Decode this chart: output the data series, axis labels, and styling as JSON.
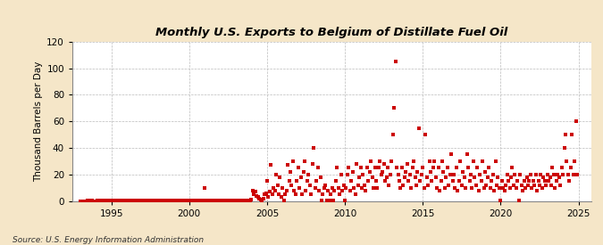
{
  "title": "Monthly U.S. Exports to Belgium of Distillate Fuel Oil",
  "ylabel": "Thousand Barrels per Day",
  "source": "Source: U.S. Energy Information Administration",
  "background_color": "#f5e6c8",
  "plot_background_color": "#ffffff",
  "marker_color": "#cc0000",
  "ylim": [
    0,
    120
  ],
  "yticks": [
    0,
    20,
    40,
    60,
    80,
    100,
    120
  ],
  "xlim_start": 1992.5,
  "xlim_end": 2025.8,
  "xticks": [
    1995,
    2000,
    2005,
    2010,
    2015,
    2020,
    2025
  ],
  "data": [
    [
      1993.0,
      0
    ],
    [
      1993.08,
      0
    ],
    [
      1993.17,
      0
    ],
    [
      1993.25,
      0
    ],
    [
      1993.33,
      0
    ],
    [
      1993.42,
      0
    ],
    [
      1993.5,
      0.5
    ],
    [
      1993.58,
      0.5
    ],
    [
      1993.67,
      0.5
    ],
    [
      1993.75,
      0.5
    ],
    [
      1993.83,
      0
    ],
    [
      1993.92,
      0
    ],
    [
      1994.0,
      0
    ],
    [
      1994.08,
      0.5
    ],
    [
      1994.17,
      0
    ],
    [
      1994.25,
      0.5
    ],
    [
      1994.33,
      0.5
    ],
    [
      1994.42,
      0.5
    ],
    [
      1994.5,
      0.5
    ],
    [
      1994.58,
      0.5
    ],
    [
      1994.67,
      0.5
    ],
    [
      1994.75,
      0.5
    ],
    [
      1994.83,
      0.5
    ],
    [
      1994.92,
      0.5
    ],
    [
      1995.0,
      0.5
    ],
    [
      1995.08,
      0.5
    ],
    [
      1995.17,
      0.5
    ],
    [
      1995.25,
      0.5
    ],
    [
      1995.33,
      0.5
    ],
    [
      1995.42,
      0.5
    ],
    [
      1995.5,
      0.5
    ],
    [
      1995.58,
      0.5
    ],
    [
      1995.67,
      0.5
    ],
    [
      1995.75,
      0.5
    ],
    [
      1995.83,
      0.5
    ],
    [
      1995.92,
      0.5
    ],
    [
      1996.0,
      0.5
    ],
    [
      1996.08,
      0.5
    ],
    [
      1996.17,
      0.5
    ],
    [
      1996.25,
      0.5
    ],
    [
      1996.33,
      0.5
    ],
    [
      1996.42,
      0.5
    ],
    [
      1996.5,
      0.5
    ],
    [
      1996.58,
      0.5
    ],
    [
      1996.67,
      0.5
    ],
    [
      1996.75,
      0.5
    ],
    [
      1996.83,
      0.5
    ],
    [
      1996.92,
      0.5
    ],
    [
      1997.0,
      0.5
    ],
    [
      1997.08,
      0.5
    ],
    [
      1997.17,
      0.5
    ],
    [
      1997.25,
      0.5
    ],
    [
      1997.33,
      0.5
    ],
    [
      1997.42,
      0.5
    ],
    [
      1997.5,
      0.5
    ],
    [
      1997.58,
      0.5
    ],
    [
      1997.67,
      0.5
    ],
    [
      1997.75,
      0.5
    ],
    [
      1997.83,
      0.5
    ],
    [
      1997.92,
      0.5
    ],
    [
      1998.0,
      0.5
    ],
    [
      1998.08,
      0.5
    ],
    [
      1998.17,
      0.5
    ],
    [
      1998.25,
      0.5
    ],
    [
      1998.33,
      0.5
    ],
    [
      1998.42,
      0.5
    ],
    [
      1998.5,
      0.5
    ],
    [
      1998.58,
      0.5
    ],
    [
      1998.67,
      0.5
    ],
    [
      1998.75,
      0.5
    ],
    [
      1998.83,
      0.5
    ],
    [
      1998.92,
      0.5
    ],
    [
      1999.0,
      0.5
    ],
    [
      1999.08,
      0.5
    ],
    [
      1999.17,
      0.5
    ],
    [
      1999.25,
      0.5
    ],
    [
      1999.33,
      0.5
    ],
    [
      1999.42,
      0.5
    ],
    [
      1999.5,
      0.5
    ],
    [
      1999.58,
      0.5
    ],
    [
      1999.67,
      0.5
    ],
    [
      1999.75,
      0.5
    ],
    [
      1999.83,
      0.5
    ],
    [
      1999.92,
      0.5
    ],
    [
      2000.0,
      0.5
    ],
    [
      2000.08,
      0.5
    ],
    [
      2000.17,
      0.5
    ],
    [
      2000.25,
      0.5
    ],
    [
      2000.33,
      0.5
    ],
    [
      2000.42,
      0.5
    ],
    [
      2000.5,
      0.5
    ],
    [
      2000.58,
      0.5
    ],
    [
      2000.67,
      0.5
    ],
    [
      2000.75,
      0.5
    ],
    [
      2000.83,
      0.5
    ],
    [
      2000.92,
      0.5
    ],
    [
      2001.0,
      10
    ],
    [
      2001.08,
      0.5
    ],
    [
      2001.17,
      0.5
    ],
    [
      2001.25,
      0.5
    ],
    [
      2001.33,
      0.5
    ],
    [
      2001.42,
      0.5
    ],
    [
      2001.5,
      0.5
    ],
    [
      2001.58,
      0.5
    ],
    [
      2001.67,
      0.5
    ],
    [
      2001.75,
      0.5
    ],
    [
      2001.83,
      0.5
    ],
    [
      2001.92,
      0.5
    ],
    [
      2002.0,
      0.5
    ],
    [
      2002.08,
      0.5
    ],
    [
      2002.17,
      0.5
    ],
    [
      2002.25,
      0.5
    ],
    [
      2002.33,
      0.5
    ],
    [
      2002.42,
      0.5
    ],
    [
      2002.5,
      0.5
    ],
    [
      2002.58,
      0.5
    ],
    [
      2002.67,
      0.5
    ],
    [
      2002.75,
      0.5
    ],
    [
      2002.83,
      0.5
    ],
    [
      2002.92,
      0.5
    ],
    [
      2003.0,
      0.5
    ],
    [
      2003.08,
      0.5
    ],
    [
      2003.17,
      0.5
    ],
    [
      2003.25,
      0.5
    ],
    [
      2003.33,
      0.5
    ],
    [
      2003.42,
      0.5
    ],
    [
      2003.5,
      0.5
    ],
    [
      2003.58,
      0.5
    ],
    [
      2003.67,
      0.5
    ],
    [
      2003.75,
      0.5
    ],
    [
      2003.83,
      0.5
    ],
    [
      2003.92,
      0.5
    ],
    [
      2004.0,
      1
    ],
    [
      2004.08,
      8
    ],
    [
      2004.17,
      5
    ],
    [
      2004.25,
      7
    ],
    [
      2004.33,
      4
    ],
    [
      2004.42,
      3
    ],
    [
      2004.5,
      2
    ],
    [
      2004.58,
      1
    ],
    [
      2004.67,
      0.5
    ],
    [
      2004.75,
      2
    ],
    [
      2004.83,
      5
    ],
    [
      2004.92,
      6
    ],
    [
      2005.0,
      15
    ],
    [
      2005.08,
      3
    ],
    [
      2005.17,
      7
    ],
    [
      2005.25,
      27
    ],
    [
      2005.33,
      5
    ],
    [
      2005.42,
      10
    ],
    [
      2005.5,
      8
    ],
    [
      2005.58,
      20
    ],
    [
      2005.67,
      12
    ],
    [
      2005.75,
      5
    ],
    [
      2005.83,
      18
    ],
    [
      2005.92,
      3
    ],
    [
      2006.0,
      10
    ],
    [
      2006.08,
      0.5
    ],
    [
      2006.17,
      5
    ],
    [
      2006.25,
      8
    ],
    [
      2006.33,
      27
    ],
    [
      2006.42,
      15
    ],
    [
      2006.5,
      22
    ],
    [
      2006.58,
      12
    ],
    [
      2006.67,
      30
    ],
    [
      2006.75,
      8
    ],
    [
      2006.83,
      5
    ],
    [
      2006.92,
      15
    ],
    [
      2007.0,
      25
    ],
    [
      2007.08,
      10
    ],
    [
      2007.17,
      18
    ],
    [
      2007.25,
      5
    ],
    [
      2007.33,
      22
    ],
    [
      2007.42,
      30
    ],
    [
      2007.5,
      8
    ],
    [
      2007.58,
      15
    ],
    [
      2007.67,
      20
    ],
    [
      2007.75,
      12
    ],
    [
      2007.83,
      5
    ],
    [
      2007.92,
      28
    ],
    [
      2008.0,
      40
    ],
    [
      2008.08,
      10
    ],
    [
      2008.17,
      15
    ],
    [
      2008.25,
      25
    ],
    [
      2008.33,
      8
    ],
    [
      2008.42,
      18
    ],
    [
      2008.5,
      0.5
    ],
    [
      2008.58,
      5
    ],
    [
      2008.67,
      10
    ],
    [
      2008.75,
      12
    ],
    [
      2008.83,
      0.5
    ],
    [
      2008.92,
      8
    ],
    [
      2009.0,
      0.5
    ],
    [
      2009.08,
      5
    ],
    [
      2009.17,
      10
    ],
    [
      2009.25,
      0.5
    ],
    [
      2009.33,
      8
    ],
    [
      2009.42,
      15
    ],
    [
      2009.5,
      25
    ],
    [
      2009.58,
      10
    ],
    [
      2009.67,
      5
    ],
    [
      2009.75,
      20
    ],
    [
      2009.83,
      8
    ],
    [
      2009.92,
      12
    ],
    [
      2010.0,
      0.5
    ],
    [
      2010.08,
      10
    ],
    [
      2010.17,
      20
    ],
    [
      2010.25,
      25
    ],
    [
      2010.33,
      8
    ],
    [
      2010.42,
      15
    ],
    [
      2010.5,
      22
    ],
    [
      2010.58,
      10
    ],
    [
      2010.67,
      5
    ],
    [
      2010.75,
      28
    ],
    [
      2010.83,
      12
    ],
    [
      2010.92,
      18
    ],
    [
      2011.0,
      25
    ],
    [
      2011.08,
      10
    ],
    [
      2011.17,
      20
    ],
    [
      2011.25,
      12
    ],
    [
      2011.33,
      8
    ],
    [
      2011.42,
      25
    ],
    [
      2011.5,
      15
    ],
    [
      2011.58,
      22
    ],
    [
      2011.67,
      30
    ],
    [
      2011.75,
      18
    ],
    [
      2011.83,
      10
    ],
    [
      2011.92,
      25
    ],
    [
      2012.0,
      15
    ],
    [
      2012.08,
      10
    ],
    [
      2012.17,
      25
    ],
    [
      2012.25,
      30
    ],
    [
      2012.33,
      20
    ],
    [
      2012.42,
      22
    ],
    [
      2012.5,
      28
    ],
    [
      2012.58,
      15
    ],
    [
      2012.67,
      18
    ],
    [
      2012.75,
      25
    ],
    [
      2012.83,
      12
    ],
    [
      2012.92,
      20
    ],
    [
      2013.0,
      30
    ],
    [
      2013.08,
      50
    ],
    [
      2013.17,
      70
    ],
    [
      2013.25,
      105
    ],
    [
      2013.33,
      25
    ],
    [
      2013.42,
      20
    ],
    [
      2013.5,
      15
    ],
    [
      2013.58,
      10
    ],
    [
      2013.67,
      25
    ],
    [
      2013.75,
      12
    ],
    [
      2013.83,
      18
    ],
    [
      2013.92,
      22
    ],
    [
      2014.0,
      28
    ],
    [
      2014.08,
      15
    ],
    [
      2014.17,
      20
    ],
    [
      2014.25,
      10
    ],
    [
      2014.33,
      25
    ],
    [
      2014.42,
      30
    ],
    [
      2014.5,
      18
    ],
    [
      2014.58,
      12
    ],
    [
      2014.67,
      22
    ],
    [
      2014.75,
      55
    ],
    [
      2014.83,
      15
    ],
    [
      2014.92,
      20
    ],
    [
      2015.0,
      25
    ],
    [
      2015.08,
      10
    ],
    [
      2015.17,
      50
    ],
    [
      2015.25,
      18
    ],
    [
      2015.33,
      12
    ],
    [
      2015.42,
      30
    ],
    [
      2015.5,
      22
    ],
    [
      2015.58,
      15
    ],
    [
      2015.67,
      25
    ],
    [
      2015.75,
      30
    ],
    [
      2015.83,
      18
    ],
    [
      2015.92,
      10
    ],
    [
      2016.0,
      25
    ],
    [
      2016.08,
      8
    ],
    [
      2016.17,
      15
    ],
    [
      2016.25,
      30
    ],
    [
      2016.33,
      22
    ],
    [
      2016.42,
      10
    ],
    [
      2016.5,
      18
    ],
    [
      2016.58,
      25
    ],
    [
      2016.67,
      12
    ],
    [
      2016.75,
      20
    ],
    [
      2016.83,
      35
    ],
    [
      2016.92,
      15
    ],
    [
      2017.0,
      20
    ],
    [
      2017.08,
      10
    ],
    [
      2017.17,
      25
    ],
    [
      2017.25,
      8
    ],
    [
      2017.33,
      15
    ],
    [
      2017.42,
      30
    ],
    [
      2017.5,
      12
    ],
    [
      2017.58,
      22
    ],
    [
      2017.67,
      18
    ],
    [
      2017.75,
      10
    ],
    [
      2017.83,
      35
    ],
    [
      2017.92,
      25
    ],
    [
      2018.0,
      15
    ],
    [
      2018.08,
      20
    ],
    [
      2018.17,
      10
    ],
    [
      2018.25,
      30
    ],
    [
      2018.33,
      18
    ],
    [
      2018.42,
      12
    ],
    [
      2018.5,
      25
    ],
    [
      2018.58,
      8
    ],
    [
      2018.67,
      20
    ],
    [
      2018.75,
      15
    ],
    [
      2018.83,
      30
    ],
    [
      2018.92,
      10
    ],
    [
      2019.0,
      22
    ],
    [
      2019.08,
      12
    ],
    [
      2019.17,
      18
    ],
    [
      2019.25,
      25
    ],
    [
      2019.33,
      10
    ],
    [
      2019.42,
      15
    ],
    [
      2019.5,
      20
    ],
    [
      2019.58,
      8
    ],
    [
      2019.67,
      30
    ],
    [
      2019.75,
      12
    ],
    [
      2019.83,
      18
    ],
    [
      2019.92,
      10
    ],
    [
      2020.0,
      0.5
    ],
    [
      2020.08,
      15
    ],
    [
      2020.17,
      10
    ],
    [
      2020.25,
      8
    ],
    [
      2020.33,
      12
    ],
    [
      2020.42,
      20
    ],
    [
      2020.5,
      15
    ],
    [
      2020.58,
      10
    ],
    [
      2020.67,
      18
    ],
    [
      2020.75,
      25
    ],
    [
      2020.83,
      12
    ],
    [
      2020.92,
      20
    ],
    [
      2021.0,
      10
    ],
    [
      2021.08,
      15
    ],
    [
      2021.17,
      0.5
    ],
    [
      2021.25,
      20
    ],
    [
      2021.33,
      12
    ],
    [
      2021.42,
      8
    ],
    [
      2021.5,
      15
    ],
    [
      2021.58,
      10
    ],
    [
      2021.67,
      18
    ],
    [
      2021.75,
      12
    ],
    [
      2021.83,
      15
    ],
    [
      2021.92,
      20
    ],
    [
      2022.0,
      10
    ],
    [
      2022.08,
      15
    ],
    [
      2022.17,
      12
    ],
    [
      2022.25,
      20
    ],
    [
      2022.33,
      8
    ],
    [
      2022.42,
      15
    ],
    [
      2022.5,
      12
    ],
    [
      2022.58,
      20
    ],
    [
      2022.67,
      10
    ],
    [
      2022.75,
      18
    ],
    [
      2022.83,
      15
    ],
    [
      2022.92,
      12
    ],
    [
      2023.0,
      20
    ],
    [
      2023.08,
      15
    ],
    [
      2023.17,
      18
    ],
    [
      2023.25,
      12
    ],
    [
      2023.33,
      25
    ],
    [
      2023.42,
      20
    ],
    [
      2023.5,
      10
    ],
    [
      2023.58,
      15
    ],
    [
      2023.67,
      20
    ],
    [
      2023.75,
      18
    ],
    [
      2023.83,
      12
    ],
    [
      2023.92,
      25
    ],
    [
      2024.0,
      20
    ],
    [
      2024.08,
      40
    ],
    [
      2024.17,
      50
    ],
    [
      2024.25,
      30
    ],
    [
      2024.33,
      20
    ],
    [
      2024.42,
      15
    ],
    [
      2024.5,
      25
    ],
    [
      2024.58,
      50
    ],
    [
      2024.67,
      20
    ],
    [
      2024.75,
      30
    ],
    [
      2024.83,
      60
    ],
    [
      2024.92,
      20
    ]
  ]
}
